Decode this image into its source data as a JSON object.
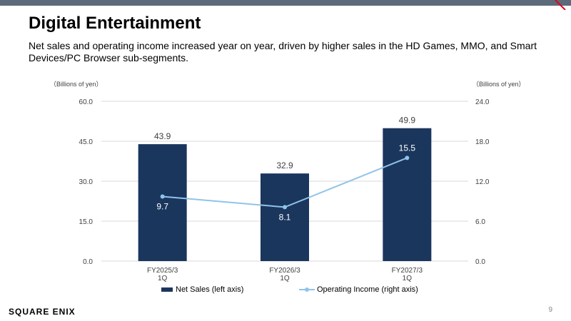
{
  "slide": {
    "title": "Digital Entertainment",
    "subtitle": "Net sales and operating income increased year on year, driven by higher sales in the HD Games, MMO, and Smart Devices/PC Browser sub-segments.",
    "logo_text": "SQUARE ENIX",
    "page_number": "9"
  },
  "colors": {
    "bar": "#1b365d",
    "line": "#8fc3ea",
    "top_bar": "#5b6b7c",
    "accent": "#e60012"
  },
  "chart_data": {
    "type": "bar",
    "categories": [
      "FY2025/3\n1Q",
      "FY2026/3\n1Q",
      "FY2027/3\n1Q"
    ],
    "series": [
      {
        "name": "Net Sales (left axis)",
        "type": "bar",
        "axis": "left",
        "values": [
          43.9,
          32.9,
          49.9
        ]
      },
      {
        "name": "Operating Income (right axis)",
        "type": "line",
        "axis": "right",
        "values": [
          9.7,
          8.1,
          15.5
        ]
      }
    ],
    "left_axis": {
      "label": "（Billions of yen）",
      "ylim": [
        0,
        60
      ],
      "ticks": [
        "0.0",
        "15.0",
        "30.0",
        "45.0",
        "60.0"
      ]
    },
    "right_axis": {
      "label": "（Billions of yen）",
      "ylim": [
        0,
        24
      ],
      "ticks": [
        "0.0",
        "6.0",
        "12.0",
        "18.0",
        "24.0"
      ]
    },
    "grid": true,
    "legend_position": "bottom"
  }
}
